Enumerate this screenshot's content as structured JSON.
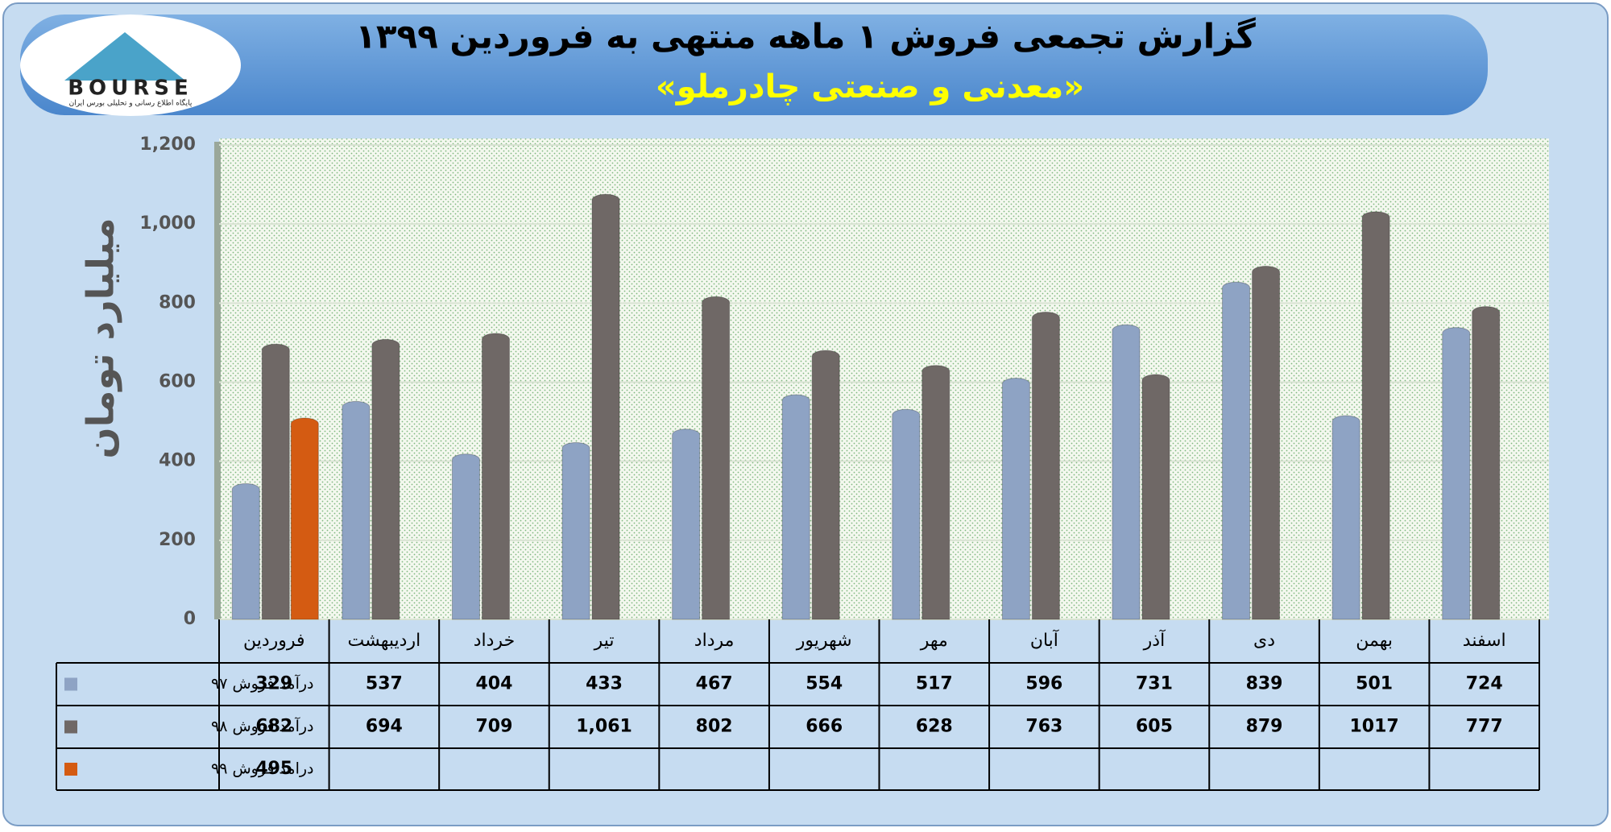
{
  "logo": {
    "text": "BOURSE",
    "tagline": "پایگاه اطلاع رسانی و تحلیلی بورس ایران"
  },
  "chart_data": {
    "type": "bar",
    "title": "گزارش تجمعی فروش ۱ ماهه منتهی به فروردین ۱۳۹۹",
    "subtitle": "«معدنی و صنعتی چادرملو»",
    "y_label": "میلیارد تومان",
    "categories": [
      "فروردین",
      "اردیبهشت",
      "خرداد",
      "تیر",
      "مرداد",
      "شهریور",
      "مهر",
      "آبان",
      "آذر",
      "دی",
      "بهمن",
      "اسفند"
    ],
    "series": [
      {
        "name": "درآمد فروش ۹۷",
        "color": "#8ea3c4",
        "values": [
          329,
          537,
          404,
          433,
          467,
          554,
          517,
          596,
          731,
          839,
          501,
          724
        ]
      },
      {
        "name": "درآمد فروش ۹۸",
        "color": "#6f6866",
        "values": [
          682,
          694,
          709,
          1061,
          802,
          666,
          628,
          763,
          605,
          879,
          1017,
          777
        ],
        "value_labels": [
          "682",
          "694",
          "709",
          "1,061",
          "802",
          "666",
          "628",
          "763",
          "605",
          "879",
          "1017",
          "777"
        ]
      },
      {
        "name": "درامد فروش ۹۹",
        "color": "#d45b12",
        "values": [
          495,
          null,
          null,
          null,
          null,
          null,
          null,
          null,
          null,
          null,
          null,
          null
        ]
      }
    ],
    "ylim": [
      0,
      1200
    ],
    "yticks": [
      0,
      200,
      400,
      600,
      800,
      {
        "value": 1000,
        "label": "1,000"
      },
      {
        "value": 1200,
        "label": "1,200"
      }
    ],
    "grid": true
  }
}
